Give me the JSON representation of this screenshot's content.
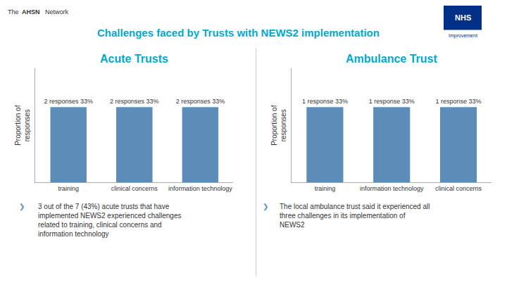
{
  "chart_data": [
    {
      "type": "bar",
      "title": "Acute Trusts",
      "categories": [
        "training",
        "clinical concerns",
        "information technology"
      ],
      "values": [
        0.33,
        0.33,
        0.33
      ],
      "value_labels": [
        "2 responses 33%",
        "2 responses 33%",
        "2 responses 33%"
      ],
      "data_labels": true,
      "color": "#5b8db8",
      "ylabel": "Proportion of\nresponses",
      "ylim": [
        0,
        0.5
      ],
      "yticks": [],
      "tick_labels": "x",
      "grid": false,
      "annotations": [
        "The",
        "AHSN",
        "Network",
        "NHS",
        "Improvement",
        "Challenges faced by Trusts with NEWS2 implementation",
        "❯",
        "3 out of the 7 (43%) acute trusts that have\nimplemented NEWS2 experienced challenges\nrelated to training, clinical concerns and\ninformation technology"
      ]
    },
    {
      "type": "bar",
      "title": "Ambulance Trust",
      "categories": [
        "training",
        "information technology",
        "clinical concerns"
      ],
      "values": [
        0.33,
        0.33,
        0.33
      ],
      "value_labels": [
        "1 response 33%",
        "1 response 33%",
        "1 response 33%"
      ],
      "data_labels": true,
      "color": "#5b8db8",
      "ylabel": "Proportion of\nresponses",
      "ylim": [
        0,
        0.5
      ],
      "yticks": [],
      "tick_labels": "x",
      "grid": false,
      "annotations": [
        "❯",
        "The local ambulance trust said it experienced all\nthree challenges in its implementation of\nNEWS2"
      ]
    }
  ]
}
